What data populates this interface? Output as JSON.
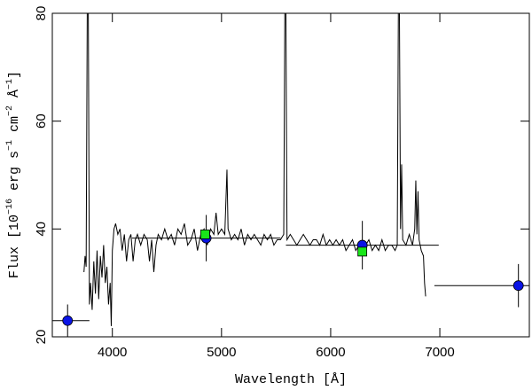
{
  "chart_data": {
    "type": "line",
    "xlabel": "Wavelength [Å]",
    "ylabel": [
      "Flux [10",
      "−16",
      " erg s",
      "−1",
      " cm",
      "−2",
      " Å",
      "−1",
      "]"
    ],
    "xlim": [
      3450,
      7820
    ],
    "ylim": [
      20,
      80
    ],
    "xticks": [
      4000,
      5000,
      6000,
      7000
    ],
    "yticks": [
      20,
      40,
      60,
      80
    ],
    "spectrum": {
      "color": "#000000",
      "x": [
        3740,
        3750,
        3760,
        3770,
        3780,
        3790,
        3800,
        3815,
        3830,
        3845,
        3860,
        3875,
        3890,
        3905,
        3920,
        3935,
        3950,
        3965,
        3980,
        3990,
        4000,
        4015,
        4030,
        4050,
        4070,
        4090,
        4110,
        4130,
        4150,
        4170,
        4190,
        4210,
        4230,
        4260,
        4290,
        4320,
        4340,
        4360,
        4380,
        4400,
        4420,
        4450,
        4480,
        4510,
        4540,
        4570,
        4600,
        4630,
        4660,
        4690,
        4720,
        4750,
        4780,
        4810,
        4840,
        4870,
        4900,
        4930,
        4950,
        4970,
        5000,
        5030,
        5050,
        5060,
        5090,
        5120,
        5150,
        5180,
        5210,
        5240,
        5270,
        5300,
        5330,
        5360,
        5390,
        5420,
        5450,
        5480,
        5510,
        5540,
        5570,
        5580,
        5590,
        5600,
        5630,
        5660,
        5690,
        5720,
        5750,
        5780,
        5810,
        5840,
        5870,
        5900,
        5930,
        5960,
        5990,
        6020,
        6050,
        6080,
        6110,
        6140,
        6170,
        6200,
        6230,
        6260,
        6290,
        6320,
        6350,
        6380,
        6410,
        6440,
        6470,
        6500,
        6530,
        6560,
        6590,
        6610,
        6620,
        6630,
        6640,
        6650,
        6660,
        6690,
        6720,
        6750,
        6770,
        6780,
        6790,
        6800,
        6810,
        6830,
        6850,
        6860,
        6870
      ],
      "values": [
        32,
        35,
        33,
        80,
        80,
        26,
        30,
        25,
        34,
        28,
        36,
        27,
        35,
        31,
        37,
        30,
        33,
        26,
        30,
        22,
        36,
        40,
        41,
        39,
        40,
        36,
        39,
        34,
        38,
        39,
        34,
        38,
        39,
        37,
        39,
        38,
        34,
        38,
        32,
        37,
        39,
        38,
        40,
        38,
        39,
        37,
        40,
        39,
        41,
        37,
        38,
        40,
        36,
        39,
        40,
        37,
        40,
        39,
        43,
        39,
        40,
        39,
        51,
        40,
        38,
        39,
        38,
        40,
        37,
        39,
        38,
        39,
        38,
        37,
        39,
        38,
        39,
        37,
        38,
        38,
        39,
        80,
        80,
        38,
        39,
        38,
        37,
        38,
        39,
        38,
        37,
        38,
        38,
        37,
        39,
        37,
        38,
        37,
        38,
        37,
        38,
        36,
        37,
        38,
        36,
        37,
        36,
        37,
        38,
        36,
        37,
        36,
        38,
        36,
        37,
        37,
        36,
        37,
        80,
        80,
        40,
        52,
        38,
        37,
        39,
        37,
        40,
        49,
        39,
        47,
        38,
        36,
        35,
        30,
        27.5
      ]
    },
    "photometry": {
      "color": "#0a14e6",
      "x": [
        3590,
        4860,
        6290,
        7720
      ],
      "values": [
        23,
        38.3,
        37,
        29.5
      ],
      "xerr": [
        200,
        680,
        700,
        770
      ],
      "yerr": [
        3,
        4.3,
        4.5,
        4
      ]
    },
    "spectrophotometry": {
      "color": "#19e619",
      "x": [
        4850,
        6290
      ],
      "values": [
        39,
        35.8
      ]
    }
  }
}
